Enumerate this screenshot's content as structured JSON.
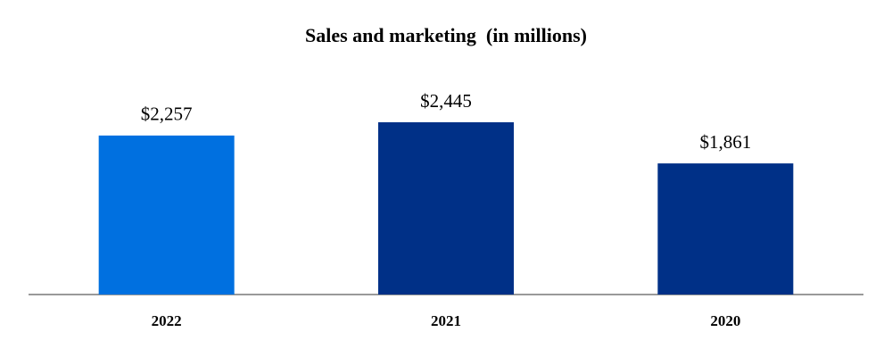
{
  "chart_data": {
    "type": "bar",
    "title": "Sales and marketing  (in millions)",
    "categories": [
      "2022",
      "2021",
      "2020"
    ],
    "values": [
      2257,
      2445,
      1861
    ],
    "value_labels": [
      "$2,257",
      "$2,445",
      "$1,861"
    ],
    "colors": [
      "#0070e0",
      "#003087",
      "#003087"
    ]
  }
}
